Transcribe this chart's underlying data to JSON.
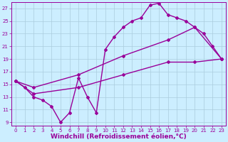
{
  "xlabel": "Windchill (Refroidissement éolien,°C)",
  "ylabel": "",
  "bg_color": "#cceeff",
  "grid_color": "#aaccdd",
  "line_color": "#990099",
  "xlim": [
    -0.5,
    23.5
  ],
  "ylim": [
    8.5,
    28.0
  ],
  "xticks": [
    0,
    1,
    2,
    3,
    4,
    5,
    6,
    7,
    8,
    9,
    10,
    11,
    12,
    13,
    14,
    15,
    16,
    17,
    18,
    19,
    20,
    21,
    22,
    23
  ],
  "yticks": [
    9,
    11,
    13,
    15,
    17,
    19,
    21,
    23,
    25,
    27
  ],
  "line1_x": [
    0,
    1,
    2,
    3,
    4,
    5,
    6,
    7,
    8,
    9,
    10,
    11,
    12,
    13,
    14,
    15,
    16,
    17,
    18,
    19,
    20,
    21,
    22,
    23
  ],
  "line1_y": [
    15.5,
    14.5,
    13.0,
    12.5,
    11.5,
    9.0,
    10.5,
    16.0,
    13.0,
    10.5,
    20.5,
    22.5,
    24.0,
    25.0,
    25.5,
    27.5,
    27.8,
    26.0,
    25.5,
    25.0,
    24.0,
    23.0,
    21.0,
    19.0
  ],
  "line2_x": [
    0,
    2,
    7,
    12,
    17,
    20,
    23
  ],
  "line2_y": [
    15.5,
    14.5,
    16.5,
    19.5,
    22.0,
    24.0,
    19.0
  ],
  "line3_x": [
    0,
    2,
    7,
    12,
    17,
    20,
    23
  ],
  "line3_y": [
    15.5,
    13.5,
    14.5,
    16.5,
    18.5,
    18.5,
    19.0
  ],
  "marker": "D",
  "markersize": 2,
  "linewidth": 1.0,
  "tick_fontsize": 5,
  "xlabel_fontsize": 6.5
}
